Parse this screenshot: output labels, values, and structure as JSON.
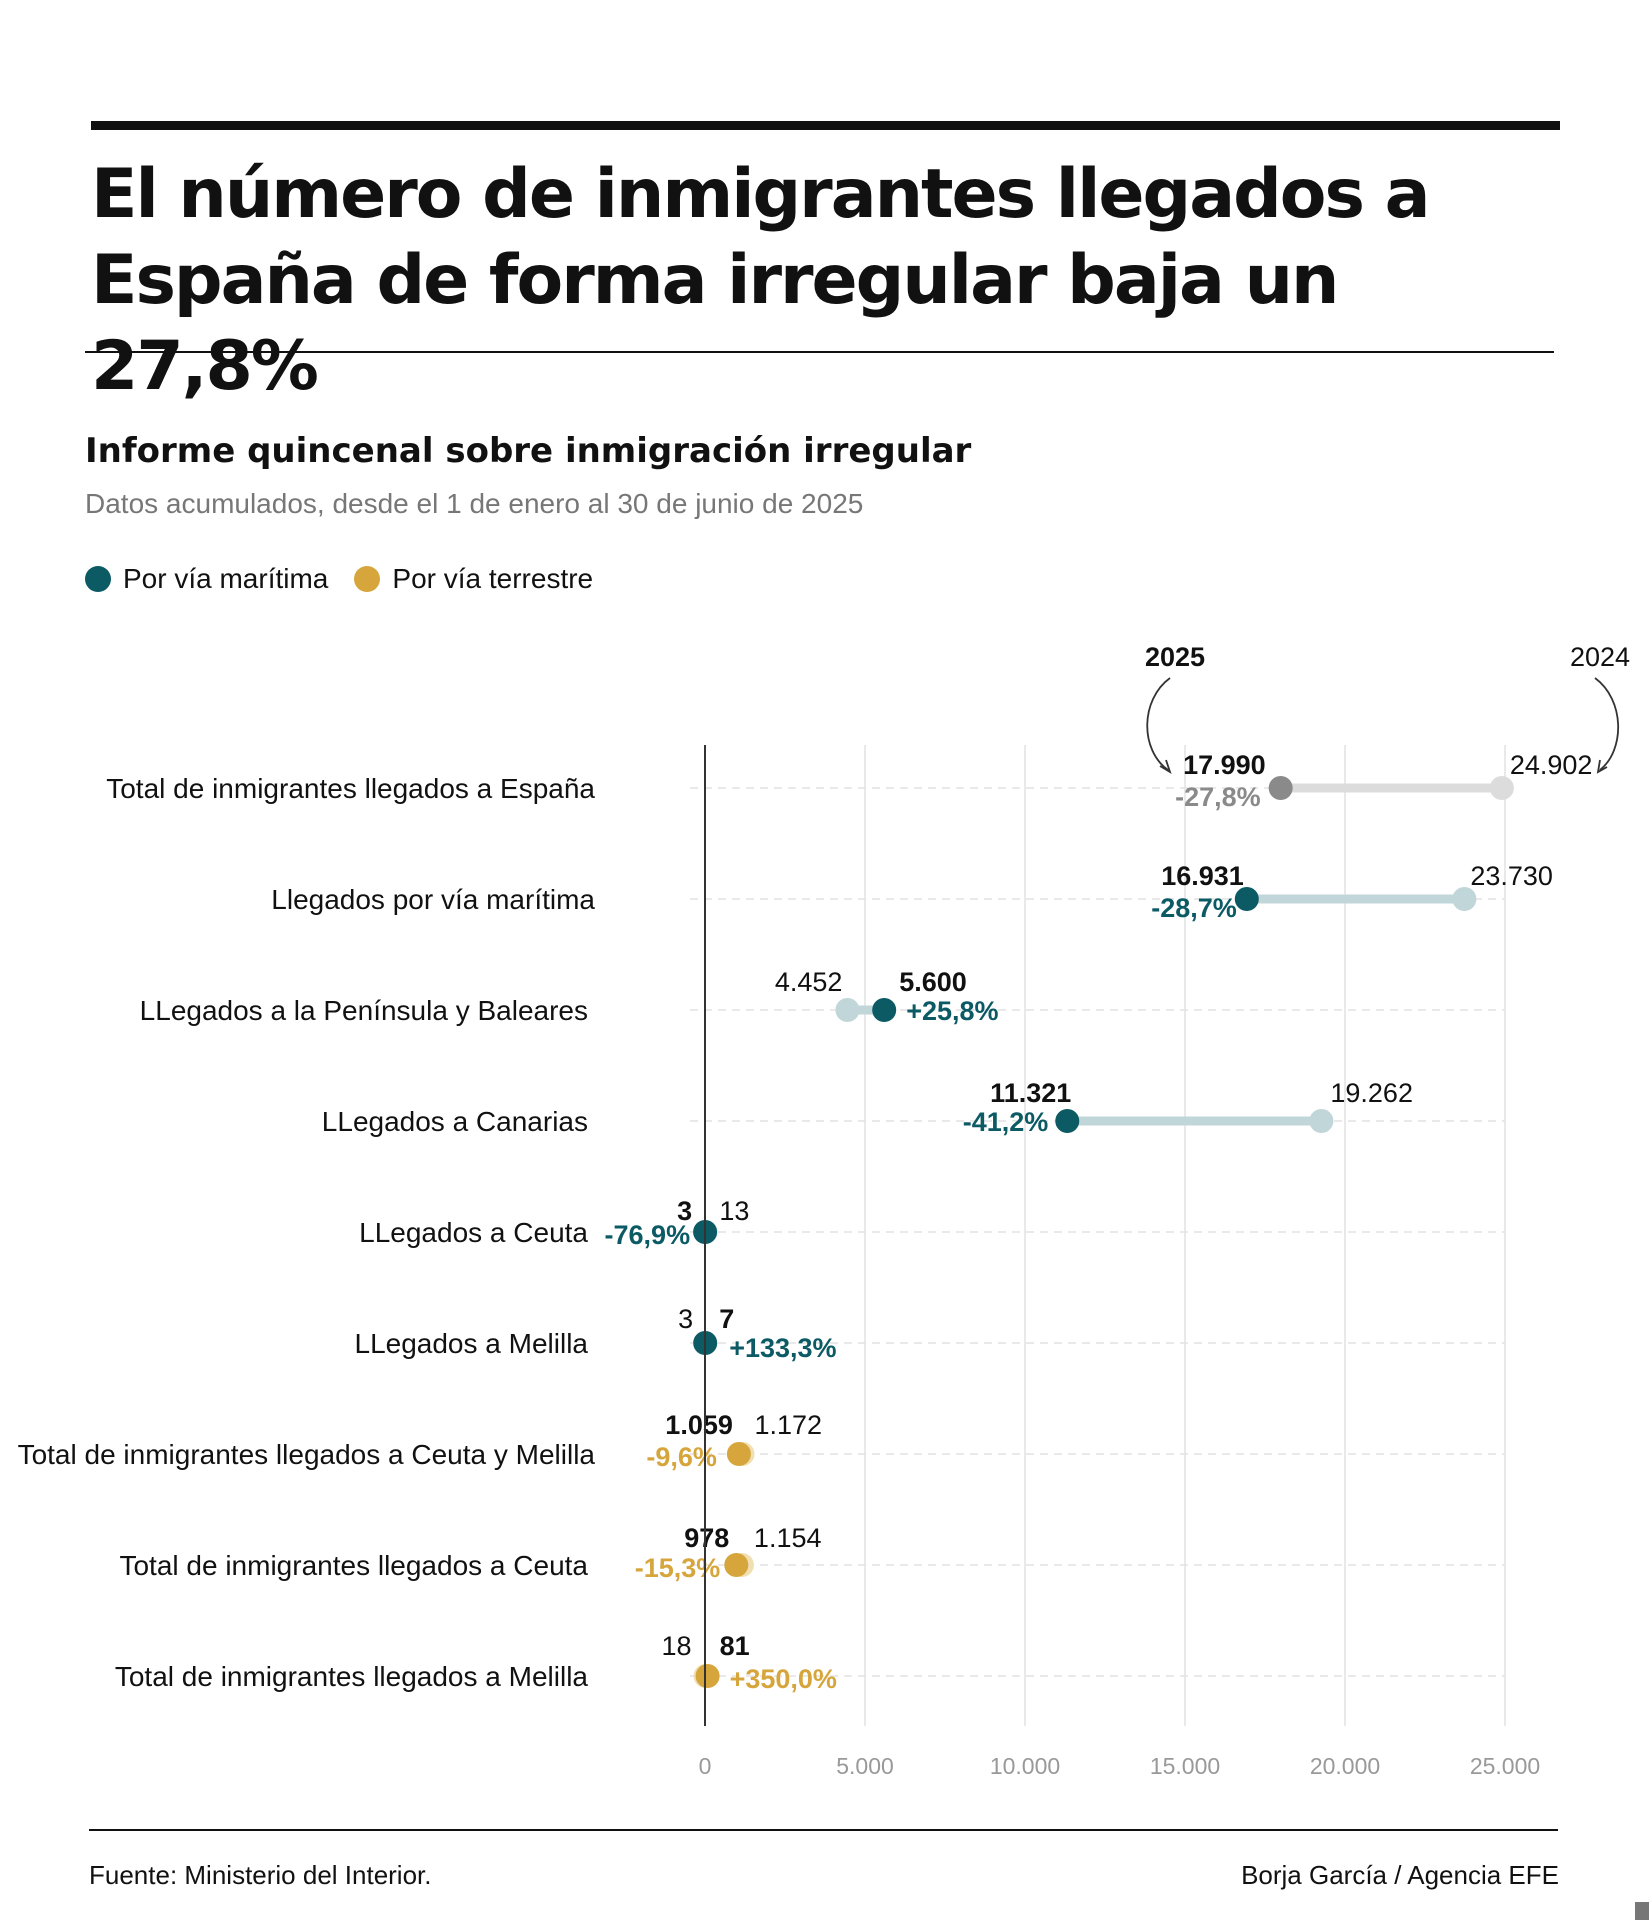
{
  "header": {
    "title": "El número de inmigrantes llegados a España de forma irregular baja un 27,8%"
  },
  "subtitle": "Informe quincenal sobre inmigración irregular",
  "note": "Datos acumulados, desde el 1 de enero al 30 de junio de 2025",
  "legend": {
    "maritima": "Por vía marítima",
    "terrestre": "Por vía terrestre"
  },
  "colors": {
    "maritima": "#0b5a64",
    "maritima_prev": "#c0d6d9",
    "terrestre": "#d6a63c",
    "terrestre_prev": "#f1dfb4",
    "total": "#8a8a8a",
    "total_prev": "#dcdcdc",
    "axis": "#333333",
    "grid": "#e2e2e2"
  },
  "chart_data": {
    "type": "dumbbell",
    "year_labels": {
      "current": "2025",
      "previous": "2024"
    },
    "x_axis": {
      "min": 0,
      "max": 25000,
      "ticks": [
        0,
        5000,
        10000,
        15000,
        20000,
        25000
      ],
      "tick_labels": [
        "0",
        "5.000",
        "10.000",
        "15.000",
        "20.000",
        "25.000"
      ]
    },
    "rows": [
      {
        "label": "Total de inmigrantes llegados a España",
        "group": "total",
        "v2025": 17990,
        "v2024": 24902,
        "v2025_label": "17.990",
        "v2024_label": "24.902",
        "change": "-27,8%"
      },
      {
        "label": "Llegados por vía marítima",
        "group": "maritima",
        "v2025": 16931,
        "v2024": 23730,
        "v2025_label": "16.931",
        "v2024_label": "23.730",
        "change": "-28,7%"
      },
      {
        "label": "LLegados a la Península y Baleares",
        "group": "maritima",
        "v2025": 5600,
        "v2024": 4452,
        "v2025_label": "5.600",
        "v2024_label": "4.452",
        "change": "+25,8%"
      },
      {
        "label": "LLegados a Canarias",
        "group": "maritima",
        "v2025": 11321,
        "v2024": 19262,
        "v2025_label": "11.321",
        "v2024_label": "19.262",
        "change": "-41,2%"
      },
      {
        "label": "LLegados a Ceuta",
        "group": "maritima",
        "v2025": 3,
        "v2024": 13,
        "v2025_label": "3",
        "v2024_label": "13",
        "change": "-76,9%"
      },
      {
        "label": "LLegados a Melilla",
        "group": "maritima",
        "v2025": 7,
        "v2024": 3,
        "v2025_label": "7",
        "v2024_label": "3",
        "change": "+133,3%"
      },
      {
        "label": "Total de inmigrantes llegados a Ceuta y Melilla",
        "group": "terrestre",
        "v2025": 1059,
        "v2024": 1172,
        "v2025_label": "1.059",
        "v2024_label": "1.172",
        "change": "-9,6%"
      },
      {
        "label": "Total de inmigrantes llegados a Ceuta",
        "group": "terrestre",
        "v2025": 978,
        "v2024": 1154,
        "v2025_label": "978",
        "v2024_label": "1.154",
        "change": "-15,3%"
      },
      {
        "label": "Total de inmigrantes llegados a Melilla",
        "group": "terrestre",
        "v2025": 81,
        "v2024": 18,
        "v2025_label": "81",
        "v2024_label": "18",
        "change": "+350,0%"
      }
    ]
  },
  "footer": {
    "source": "Fuente: Ministerio del Interior.",
    "credit": "Borja García / Agencia EFE"
  }
}
